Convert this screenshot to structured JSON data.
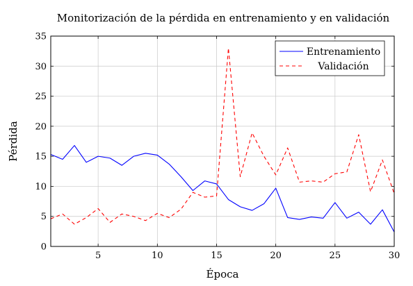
{
  "chart_data": {
    "type": "line",
    "title": "Monitorización de la pérdida en entrenamiento y en validación",
    "xlabel": "Época",
    "ylabel": "Pérdida",
    "xlim": [
      1,
      30
    ],
    "ylim": [
      0,
      35
    ],
    "xticks": [
      5,
      10,
      15,
      20,
      25,
      30
    ],
    "yticks": [
      0,
      5,
      10,
      15,
      20,
      25,
      30,
      35
    ],
    "grid": true,
    "legend_position": "top-right",
    "x": [
      1,
      2,
      3,
      4,
      5,
      6,
      7,
      8,
      9,
      10,
      11,
      12,
      13,
      14,
      15,
      16,
      17,
      18,
      19,
      20,
      21,
      22,
      23,
      24,
      25,
      26,
      27,
      28,
      29,
      30
    ],
    "series": [
      {
        "name": "Entrenamiento",
        "color": "#0000ff",
        "style": "solid",
        "values": [
          15.3,
          14.5,
          16.8,
          14.0,
          15.0,
          14.7,
          13.5,
          15.0,
          15.5,
          15.2,
          13.7,
          11.6,
          9.3,
          10.9,
          10.4,
          7.8,
          6.6,
          6.0,
          7.1,
          9.7,
          4.8,
          4.5,
          4.9,
          4.7,
          7.3,
          4.7,
          5.7,
          3.7,
          6.1,
          2.4
        ]
      },
      {
        "name": "Validación",
        "color": "#ff0000",
        "style": "dashed",
        "values": [
          4.6,
          5.4,
          3.7,
          4.8,
          6.3,
          4.0,
          5.4,
          5.0,
          4.3,
          5.5,
          4.8,
          6.2,
          9.0,
          8.2,
          8.4,
          33.0,
          11.6,
          18.9,
          15.0,
          11.9,
          16.4,
          10.7,
          10.9,
          10.7,
          12.1,
          12.4,
          18.6,
          9.1,
          14.4,
          8.8
        ]
      }
    ]
  }
}
